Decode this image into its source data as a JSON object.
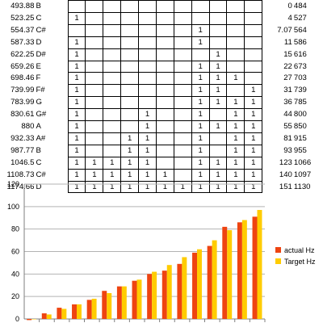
{
  "spreadsheet": {
    "rows": [
      {
        "freq": "493.88",
        "note": "B",
        "bits": [
          "",
          "",
          "",
          "",
          "",
          "",
          "",
          "",
          "",
          "",
          ""
        ],
        "value": "0",
        "hz": "484"
      },
      {
        "freq": "523.25",
        "note": "C",
        "bits": [
          "1",
          "",
          "",
          "",
          "",
          "",
          "",
          "",
          "",
          "",
          ""
        ],
        "value": "4",
        "hz": "527"
      },
      {
        "freq": "554.37",
        "note": "C#",
        "bits": [
          "",
          "",
          "",
          "",
          "",
          "",
          "",
          "1",
          "",
          "",
          ""
        ],
        "value": "7.07",
        "hz": "564"
      },
      {
        "freq": "587.33",
        "note": "D",
        "bits": [
          "1",
          "",
          "",
          "",
          "",
          "",
          "",
          "1",
          "",
          "",
          ""
        ],
        "value": "11",
        "hz": "586"
      },
      {
        "freq": "622.25",
        "note": "D#",
        "bits": [
          "1",
          "",
          "",
          "",
          "",
          "",
          "",
          "",
          "1",
          "",
          ""
        ],
        "value": "15",
        "hz": "616"
      },
      {
        "freq": "659.26",
        "note": "E",
        "bits": [
          "1",
          "",
          "",
          "",
          "",
          "",
          "",
          "1",
          "1",
          "",
          ""
        ],
        "value": "22",
        "hz": "673"
      },
      {
        "freq": "698.46",
        "note": "F",
        "bits": [
          "1",
          "",
          "",
          "",
          "",
          "",
          "",
          "1",
          "1",
          "1",
          ""
        ],
        "value": "27",
        "hz": "703"
      },
      {
        "freq": "739.99",
        "note": "F#",
        "bits": [
          "1",
          "",
          "",
          "",
          "",
          "",
          "",
          "1",
          "1",
          "",
          "1"
        ],
        "value": "31",
        "hz": "739"
      },
      {
        "freq": "783.99",
        "note": "G",
        "bits": [
          "1",
          "",
          "",
          "",
          "",
          "",
          "",
          "1",
          "1",
          "1",
          "1"
        ],
        "value": "36",
        "hz": "785"
      },
      {
        "freq": "830.61",
        "note": "G#",
        "bits": [
          "1",
          "",
          "",
          "",
          "1",
          "",
          "",
          "1",
          "",
          "1",
          "1"
        ],
        "value": "44",
        "hz": "800"
      },
      {
        "freq": "880",
        "note": "A",
        "bits": [
          "1",
          "",
          "",
          "",
          "1",
          "",
          "",
          "1",
          "1",
          "1",
          "1"
        ],
        "value": "55",
        "hz": "850"
      },
      {
        "freq": "932.33",
        "note": "A#",
        "bits": [
          "1",
          "",
          "",
          "1",
          "1",
          "",
          "",
          "1",
          "",
          "1",
          "1"
        ],
        "value": "81",
        "hz": "915"
      },
      {
        "freq": "987.77",
        "note": "B",
        "bits": [
          "1",
          "",
          "",
          "1",
          "1",
          "",
          "",
          "1",
          "",
          "1",
          "1"
        ],
        "value": "93",
        "hz": "955"
      },
      {
        "freq": "1046.5",
        "note": "C",
        "bits": [
          "1",
          "1",
          "1",
          "1",
          "1",
          "",
          "",
          "1",
          "1",
          "1",
          "1"
        ],
        "value": "123",
        "hz": "1066"
      },
      {
        "freq": "1108.73",
        "note": "C#",
        "bits": [
          "1",
          "1",
          "1",
          "1",
          "1",
          "1",
          "",
          "1",
          "1",
          "1",
          "1"
        ],
        "value": "140",
        "hz": "1097"
      },
      {
        "freq": "1174.66",
        "note": "D",
        "bits": [
          "1",
          "1",
          "1",
          "1",
          "1",
          "1",
          "1",
          "1",
          "1",
          "1",
          "1"
        ],
        "value": "151",
        "hz": "1130"
      }
    ]
  },
  "colors": {
    "actual": "#ee4411",
    "target": "#ffcc00",
    "grid": "#b3b3b3",
    "axis": "#7f7f7f"
  },
  "chart_data": {
    "type": "bar",
    "categories": [
      "",
      "",
      "",
      "",
      "",
      "",
      "",
      "",
      "",
      "",
      "",
      "",
      "",
      "",
      "",
      ""
    ],
    "series": [
      {
        "name": "actual Hz",
        "values": [
          -1,
          5,
          10,
          13,
          17,
          25,
          29,
          34,
          40,
          43,
          49,
          59,
          65,
          82,
          86,
          91
        ]
      },
      {
        "name": "Target Hz",
        "values": [
          0,
          4,
          9,
          13,
          18,
          23,
          29,
          35,
          42,
          48,
          55,
          62,
          70,
          79,
          88,
          97
        ]
      }
    ],
    "ylim": [
      0,
      120
    ],
    "yticks": [
      "0",
      "20",
      "40",
      "60",
      "80",
      "100",
      "120"
    ],
    "grid": true,
    "legend": "right"
  }
}
